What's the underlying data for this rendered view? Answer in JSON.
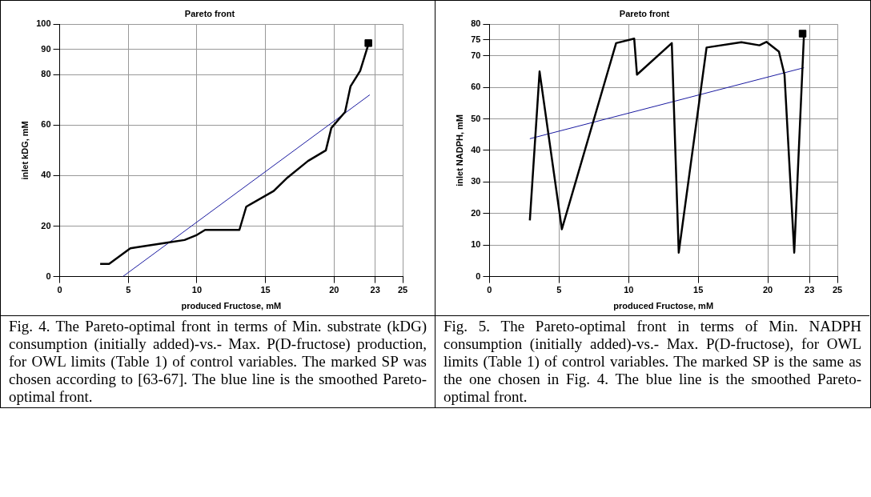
{
  "chart_data": [
    {
      "type": "line",
      "title": "Pareto front",
      "xlabel": "produced Fructose, mM",
      "ylabel": "inlet kDG, mM",
      "xlim": [
        0,
        25
      ],
      "xticks": [
        0,
        5,
        10,
        15,
        20,
        23,
        25
      ],
      "ylim": [
        0,
        100
      ],
      "yticks": [
        0,
        20,
        40,
        60,
        80,
        90,
        100
      ],
      "grid": true,
      "legend": false,
      "series": [
        {
          "color": "#000000",
          "x": [
            2.95,
            3.6,
            5.15,
            5.7,
            8.0,
            9.1,
            10.0,
            10.6,
            13.1,
            13.6,
            15.6,
            16.6,
            18.1,
            19.4,
            19.8,
            20.8,
            21.2,
            21.9,
            22.5
          ],
          "values": [
            5,
            5,
            11.2,
            11.7,
            13.6,
            14.5,
            16.5,
            18.5,
            18.5,
            27.7,
            33.9,
            39.2,
            45.8,
            50,
            58.9,
            65.2,
            75.4,
            81.5,
            92
          ]
        },
        {
          "color": "#1a1aa0",
          "x": [
            4.6,
            22.6
          ],
          "values": [
            0,
            72
          ]
        },
        {
          "type": "scatter",
          "marker": "square",
          "color": "#000000",
          "x": [
            22.5
          ],
          "values": [
            92.5
          ]
        }
      ],
      "annotations": [
        "Fig. 4. The Pareto-optimal front in terms of Min. substrate (kDG) consumption (initially added)-vs.- Max. P(D-fructose) production, for OWL limits (Table 1) of control variables. The marked SP was chosen according to [63-67]. The blue line is the smoothed Pareto-optimal front."
      ]
    },
    {
      "type": "line",
      "title": "Pareto front",
      "xlabel": "produced Fructose, mM",
      "ylabel": "inlet NADPH, mM",
      "xlim": [
        0,
        25
      ],
      "xticks": [
        0,
        5,
        10,
        15,
        20,
        23,
        25
      ],
      "ylim": [
        0,
        80
      ],
      "yticks": [
        0,
        10,
        20,
        30,
        40,
        50,
        60,
        70,
        75,
        80
      ],
      "grid": true,
      "legend": false,
      "series": [
        {
          "color": "#000000",
          "x": [
            2.9,
            3.6,
            5.2,
            9.1,
            10.4,
            10.6,
            13.1,
            13.6,
            15.6,
            18.1,
            19.4,
            19.9,
            20.8,
            21.2,
            21.9,
            22.6
          ],
          "values": [
            17.8,
            65,
            15,
            74,
            75.4,
            64,
            74,
            7.6,
            72.6,
            74.3,
            73.3,
            74.4,
            71.3,
            64,
            7.6,
            76.8
          ]
        },
        {
          "color": "#1a1aa0",
          "x": [
            2.9,
            22.6
          ],
          "values": [
            43.7,
            66.2
          ]
        },
        {
          "type": "scatter",
          "marker": "square",
          "color": "#000000",
          "x": [
            22.5
          ],
          "values": [
            77
          ]
        }
      ],
      "annotations": [
        "Fig. 5. The Pareto-optimal front in terms of Min. NADPH consumption (initially added)-vs.- Max. P(D-fructose), for OWL limits (Table 1) of control variables. The marked SP is the same as the one chosen in Fig. 4. The blue line is the smoothed Pareto-optimal front."
      ]
    }
  ]
}
